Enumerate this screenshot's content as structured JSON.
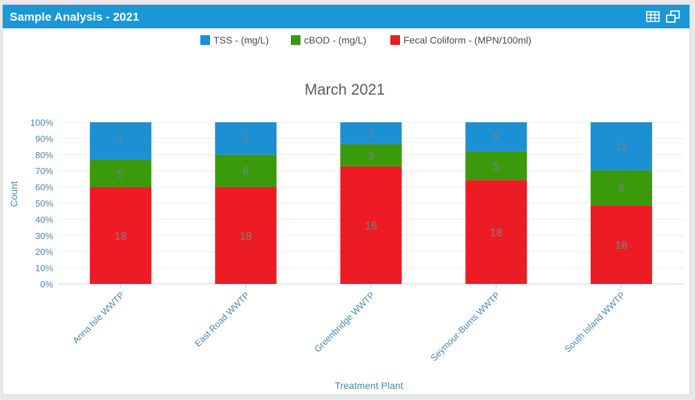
{
  "panel": {
    "title": "Sample Analysis - 2021",
    "icons": [
      "table-icon",
      "popout-icon"
    ]
  },
  "colors": {
    "header": "#1a98d5",
    "series": [
      "#1b90d2",
      "#3a9a0b",
      "#ed1c24"
    ]
  },
  "chart_data": {
    "type": "bar",
    "stacking": "percent",
    "title": "March 2021",
    "xlabel": "Treatment Plant",
    "ylabel": "Count",
    "ylim": [
      0,
      100
    ],
    "yticks": [
      "0%",
      "10%",
      "20%",
      "30%",
      "40%",
      "50%",
      "60%",
      "70%",
      "80%",
      "90%",
      "100%"
    ],
    "grid": true,
    "legend": "top-center",
    "categories": [
      "Anna Isle WWTP",
      "East Road WWTP",
      "Greenbridge WWTP",
      "Seymour-Burns WWTP",
      "South Island WWTP"
    ],
    "series": [
      {
        "name": "TSS - (mg/L)",
        "color": "#1b90d2",
        "values": [
          7,
          6,
          3,
          5,
          11
        ]
      },
      {
        "name": "cBOD - (mg/L)",
        "color": "#3a9a0b",
        "values": [
          5,
          6,
          3,
          5,
          8
        ]
      },
      {
        "name": "Fecal Coliform - (MPN/100ml)",
        "color": "#ed1c24",
        "values": [
          18,
          18,
          16,
          18,
          18
        ]
      }
    ]
  }
}
